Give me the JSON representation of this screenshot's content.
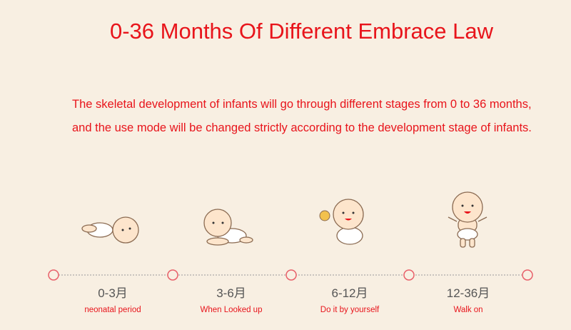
{
  "title": "0-36 Months Of Different Embrace Law",
  "description": "The skeletal development of infants will go through different stages from 0 to 36 months, and the use mode will be changed strictly according to the development stage of infants.",
  "stages": [
    {
      "age": "0-3月",
      "caption": "neonatal period"
    },
    {
      "age": "3-6月",
      "caption": "When Looked up"
    },
    {
      "age": "6-12月",
      "caption": "Do it by yourself"
    },
    {
      "age": "12-36月",
      "caption": "Walk on"
    }
  ]
}
